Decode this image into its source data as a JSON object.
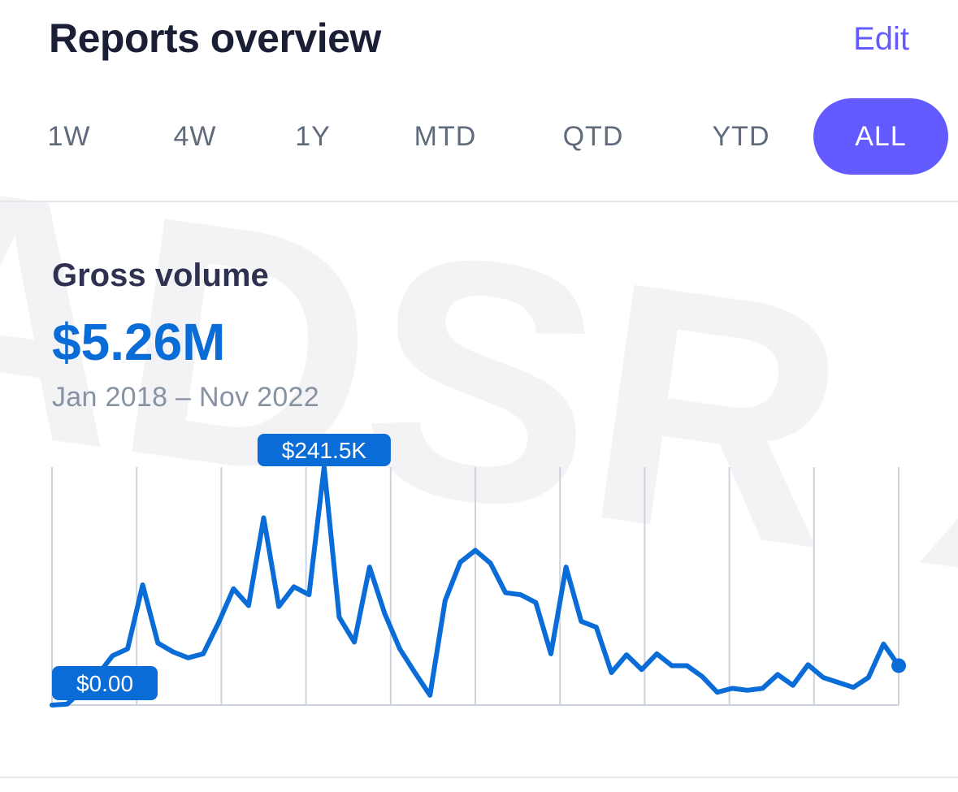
{
  "header": {
    "title": "Reports overview",
    "edit_label": "Edit"
  },
  "range_tabs": [
    {
      "label": "1W",
      "active": false
    },
    {
      "label": "4W",
      "active": false
    },
    {
      "label": "1Y",
      "active": false
    },
    {
      "label": "MTD",
      "active": false
    },
    {
      "label": "QTD",
      "active": false
    },
    {
      "label": "YTD",
      "active": false
    },
    {
      "label": "ALL",
      "active": true
    }
  ],
  "metric": {
    "label": "Gross volume",
    "value": "$5.26M",
    "date_range": "Jan 2018 – Nov 2022"
  },
  "watermark": {
    "text": "ADSR X"
  },
  "colors": {
    "accent": "#635bff",
    "line": "#0a6cd6",
    "grid": "#cdd3dc",
    "title": "#1a1f36"
  },
  "chart_data": {
    "type": "line",
    "x_start": "Jan 2018",
    "x_end": "Nov 2022",
    "max_label": "$241.5K",
    "min_label": "$0.00",
    "ylim": [
      0,
      241500
    ],
    "values": [
      0,
      1000,
      15000,
      30000,
      50000,
      57000,
      122000,
      63000,
      54000,
      48000,
      52000,
      83000,
      118000,
      101000,
      190000,
      100000,
      120000,
      112000,
      241500,
      89000,
      64000,
      140000,
      93000,
      57000,
      33000,
      10000,
      106000,
      145000,
      157000,
      144000,
      114000,
      112000,
      104000,
      52000,
      140000,
      85000,
      79000,
      33000,
      51000,
      36000,
      52000,
      40000,
      40000,
      29000,
      13000,
      17000,
      15000,
      17000,
      31000,
      20000,
      41000,
      28000,
      23000,
      18000,
      28000,
      62000,
      40000
    ],
    "grid_lines": 11,
    "grid": true
  }
}
